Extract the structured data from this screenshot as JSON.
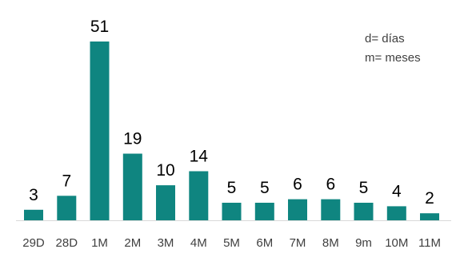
{
  "chart_data": {
    "type": "bar",
    "categories": [
      "29D",
      "28D",
      "1M",
      "2M",
      "3M",
      "4M",
      "5M",
      "6M",
      "7M",
      "8M",
      "9m",
      "10M",
      "11M"
    ],
    "values": [
      3,
      7,
      51,
      19,
      10,
      14,
      5,
      5,
      6,
      6,
      5,
      4,
      2
    ],
    "title": "",
    "xlabel": "",
    "ylabel": "",
    "ylim": [
      0,
      51
    ],
    "grid": false,
    "legend_placement": "top-right",
    "bar_color": "#0f8580",
    "axis_color": "#d9d9d9",
    "label_color": "#000000",
    "tick_color": "#404040"
  },
  "legend": {
    "line1": "d= días",
    "line2": "m= meses"
  }
}
